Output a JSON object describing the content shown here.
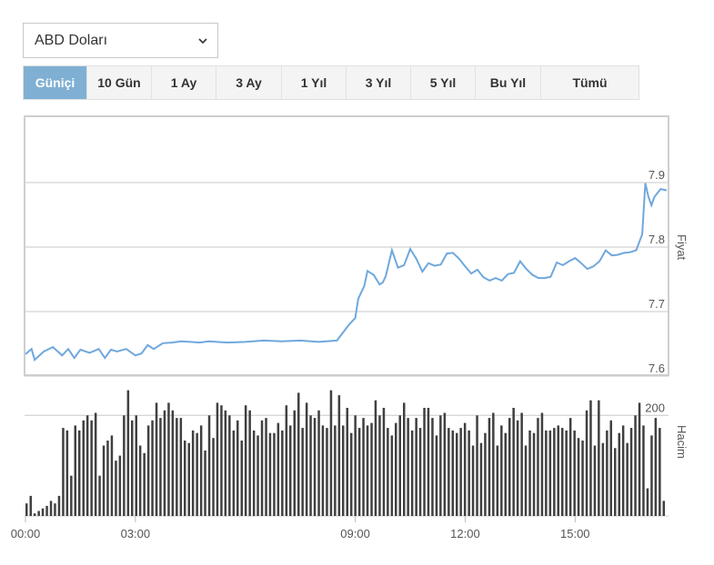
{
  "currency_select": {
    "value": "ABD Doları"
  },
  "tabs": [
    {
      "label": "Güniçi",
      "active": true
    },
    {
      "label": "10 Gün",
      "active": false
    },
    {
      "label": "1 Ay",
      "active": false
    },
    {
      "label": "3 Ay",
      "active": false
    },
    {
      "label": "1 Yıl",
      "active": false
    },
    {
      "label": "3 Yıl",
      "active": false
    },
    {
      "label": "5 Yıl",
      "active": false
    },
    {
      "label": "Bu Yıl",
      "active": false
    },
    {
      "label": "Tümü",
      "active": false
    }
  ],
  "colors": {
    "line": "#6fa8dc",
    "bars": "#404040",
    "grid": "#c8c8c8",
    "active_tab": "#7fb0d3"
  },
  "chart_data": [
    {
      "type": "line",
      "title": "",
      "ylabel": "Fiyat",
      "ylim": [
        7.6,
        7.9
      ],
      "yticks": [
        "7.9",
        "7.8",
        "7.7",
        "7.6"
      ],
      "xlim": [
        "00:00",
        "17:30"
      ],
      "xticks": [
        "00:00",
        "03:00",
        "09:00",
        "12:00",
        "15:00"
      ],
      "grid": true,
      "series": [
        {
          "x": [
            "00:00",
            "00:10",
            "00:15",
            "00:30",
            "00:45",
            "01:00",
            "01:10",
            "01:20",
            "01:30",
            "01:45",
            "02:00",
            "02:10",
            "02:20",
            "02:30",
            "02:45",
            "03:00",
            "03:10",
            "03:20",
            "03:30",
            "03:45",
            "04:00",
            "04:15",
            "04:30",
            "04:45",
            "05:00",
            "05:30",
            "06:00",
            "06:30",
            "07:00",
            "07:30",
            "08:00",
            "08:30",
            "08:50",
            "09:00",
            "09:05",
            "09:15",
            "09:20",
            "09:30",
            "09:40",
            "09:45",
            "09:50",
            "10:00",
            "10:10",
            "10:20",
            "10:30",
            "10:40",
            "10:50",
            "11:00",
            "11:10",
            "11:20",
            "11:30",
            "11:40",
            "11:50",
            "12:00",
            "12:10",
            "12:20",
            "12:30",
            "12:40",
            "12:50",
            "13:00",
            "13:10",
            "13:20",
            "13:30",
            "13:40",
            "13:50",
            "14:00",
            "14:10",
            "14:20",
            "14:30",
            "14:40",
            "14:50",
            "15:00",
            "15:10",
            "15:20",
            "15:30",
            "15:40",
            "15:50",
            "16:00",
            "16:10",
            "16:20",
            "16:30",
            "16:40",
            "16:50",
            "16:55",
            "17:00",
            "17:05",
            "17:10",
            "17:20",
            "17:30"
          ],
          "values": [
            7.634,
            7.642,
            7.625,
            7.638,
            7.645,
            7.632,
            7.642,
            7.628,
            7.641,
            7.636,
            7.642,
            7.628,
            7.641,
            7.638,
            7.642,
            7.632,
            7.635,
            7.648,
            7.642,
            7.651,
            7.652,
            7.654,
            7.653,
            7.652,
            7.654,
            7.652,
            7.653,
            7.655,
            7.654,
            7.655,
            7.653,
            7.655,
            7.68,
            7.69,
            7.72,
            7.74,
            7.763,
            7.757,
            7.742,
            7.745,
            7.755,
            7.795,
            7.768,
            7.772,
            7.797,
            7.782,
            7.762,
            7.775,
            7.771,
            7.773,
            7.79,
            7.791,
            7.782,
            7.77,
            7.759,
            7.765,
            7.753,
            7.748,
            7.752,
            7.748,
            7.758,
            7.76,
            7.778,
            7.766,
            7.757,
            7.752,
            7.752,
            7.754,
            7.776,
            7.772,
            7.778,
            7.783,
            7.775,
            7.766,
            7.77,
            7.778,
            7.795,
            7.787,
            7.788,
            7.791,
            7.792,
            7.795,
            7.82,
            7.899,
            7.878,
            7.865,
            7.878,
            7.89,
            7.888
          ]
        }
      ]
    },
    {
      "type": "bar",
      "title": "",
      "ylabel": "Hacim",
      "ylim": [
        0,
        280
      ],
      "yticks": [
        "200"
      ],
      "xticks": [
        "00:00",
        "03:00",
        "09:00",
        "12:00",
        "15:00"
      ],
      "grid": true,
      "values": [
        25,
        40,
        5,
        10,
        15,
        20,
        30,
        25,
        40,
        175,
        170,
        80,
        180,
        170,
        190,
        200,
        190,
        205,
        80,
        140,
        150,
        160,
        110,
        120,
        200,
        250,
        190,
        200,
        140,
        125,
        180,
        190,
        225,
        195,
        210,
        225,
        210,
        195,
        195,
        150,
        145,
        170,
        165,
        180,
        130,
        200,
        155,
        225,
        220,
        210,
        200,
        170,
        190,
        150,
        220,
        210,
        170,
        160,
        190,
        195,
        165,
        165,
        185,
        170,
        220,
        180,
        210,
        245,
        175,
        225,
        200,
        195,
        210,
        180,
        175,
        250,
        180,
        240,
        180,
        215,
        165,
        200,
        175,
        195,
        180,
        185,
        230,
        200,
        215,
        175,
        160,
        185,
        200,
        225,
        195,
        170,
        195,
        175,
        215,
        215,
        195,
        160,
        200,
        205,
        175,
        170,
        165,
        175,
        185,
        170,
        140,
        200,
        145,
        165,
        195,
        205,
        140,
        180,
        165,
        195,
        215,
        190,
        205,
        140,
        170,
        165,
        195,
        205,
        170,
        170,
        175,
        180,
        175,
        170,
        195,
        170,
        155,
        150,
        210,
        230,
        140,
        230,
        145,
        170,
        190,
        135,
        165,
        180,
        145,
        175,
        200,
        225,
        180,
        55,
        160,
        195,
        175,
        30
      ]
    }
  ]
}
